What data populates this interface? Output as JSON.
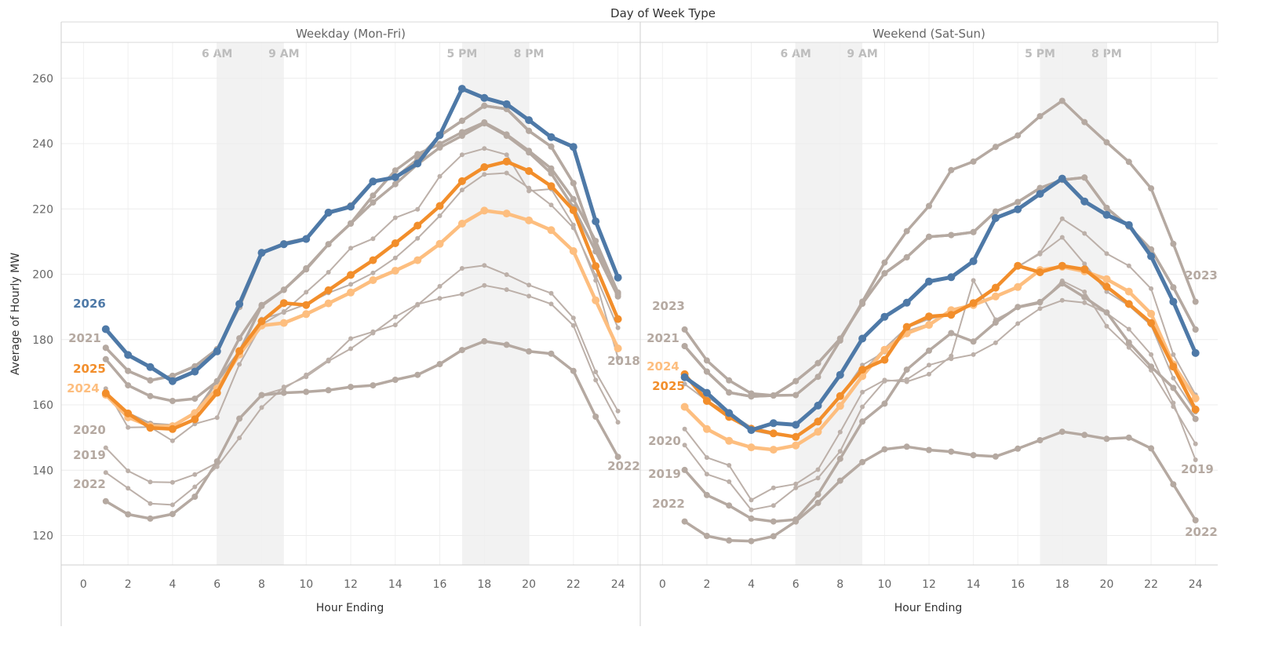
{
  "chart_data": {
    "type": "line",
    "title": "Day of Week Type",
    "ylabel": "Average of Hourly MW",
    "xlabel": "Hour Ending",
    "xlim": [
      -1,
      25
    ],
    "ylim": [
      111,
      271
    ],
    "x_ticks": [
      0,
      2,
      4,
      6,
      8,
      10,
      12,
      14,
      16,
      18,
      20,
      22,
      24
    ],
    "y_ticks": [
      120,
      140,
      160,
      180,
      200,
      220,
      240,
      260
    ],
    "grid": true,
    "legend": "none",
    "shaded_bands": [
      {
        "from": 6,
        "to": 9,
        "start_label": "6 AM",
        "end_label": "9 AM"
      },
      {
        "from": 17,
        "to": 20,
        "start_label": "5 PM",
        "end_label": "8 PM"
      }
    ],
    "x": [
      1,
      2,
      3,
      4,
      5,
      6,
      7,
      8,
      9,
      10,
      11,
      12,
      13,
      14,
      15,
      16,
      17,
      18,
      19,
      20,
      21,
      22,
      23,
      24
    ],
    "panels": [
      {
        "name": "Weekday (Mon-Fri)",
        "series": [
          {
            "name": "",
            "color": "#b5a9a1",
            "width": 3.5,
            "marker": 4,
            "values": [
              177.5,
              170.4,
              167.5,
              168.9,
              171.8,
              177.1,
              190.0,
              206.3,
              209.5,
              211.0,
              218.6,
              221.1,
              228.6,
              229.5,
              235.2,
              242.4,
              247.0,
              251.6,
              250.6,
              243.9,
              239.1,
              227.9,
              208.6,
              193.9
            ]
          },
          {
            "name": "",
            "color": "#b5a9a1",
            "width": 3.5,
            "marker": 4,
            "values": [
              163.7,
              157.4,
              154.2,
              153.7,
              157.4,
              167.3,
              180.4,
              190.6,
              195.2,
              201.8,
              209.2,
              215.6,
              224.1,
              231.8,
              236.8,
              239.9,
              243.5,
              246.5,
              242.8,
              237.8,
              232.4,
              223.0,
              210.2,
              194.4
            ]
          },
          {
            "name": "",
            "color": "#b5a9a1",
            "width": 3.5,
            "marker": 4,
            "values": [
              174.0,
              166.0,
              162.7,
              161.2,
              161.9,
              167.2,
              176.3,
              190.3,
              195.3,
              201.5,
              209.2,
              215.5,
              222.0,
              227.6,
              233.7,
              238.8,
              242.4,
              246.2,
              242.4,
              237.3,
              230.9,
              220.5,
              207.0,
              193.2
            ]
          },
          {
            "name": "2018",
            "color": "#bcb0a9",
            "width": 2,
            "marker": 3,
            "values": [
              165.0,
              153.1,
              153.2,
              149.0,
              154.2,
              156.1,
              172.4,
              184.6,
              188.6,
              194.5,
              200.6,
              208.0,
              210.9,
              217.3,
              219.9,
              230.0,
              236.6,
              238.5,
              236.6,
              225.5,
              226.1,
              215.1,
              198.1,
              174.4
            ]
          },
          {
            "name": "",
            "color": "#bcb0a9",
            "width": 2,
            "marker": 3,
            "values": [
              163.0,
              157.5,
              154.0,
              152.8,
              155.3,
              163.4,
              176.0,
              186.3,
              188.3,
              190.8,
              194.3,
              196.9,
              200.4,
              205.0,
              211.0,
              217.9,
              225.8,
              230.6,
              231.0,
              226.4,
              221.2,
              214.2,
              199.6,
              183.6
            ]
          },
          {
            "name": "2020",
            "color": "#bcb0a9",
            "width": 2,
            "marker": 3,
            "values": [
              146.9,
              139.8,
              136.4,
              136.3,
              138.7,
              142.3,
              156.0,
              163.0,
              165.0,
              169.2,
              173.8,
              180.3,
              182.4,
              184.5,
              190.6,
              196.3,
              201.8,
              202.7,
              199.9,
              196.7,
              194.2,
              186.6,
              170.1,
              158.1
            ]
          },
          {
            "name": "2019",
            "color": "#bcb0a9",
            "width": 2,
            "marker": 3,
            "values": [
              139.3,
              134.5,
              129.8,
              129.4,
              134.9,
              141.1,
              149.9,
              159.2,
              165.5,
              168.6,
              173.4,
              177.2,
              182.0,
              187.0,
              190.8,
              192.6,
              193.9,
              196.6,
              195.3,
              193.3,
              190.9,
              184.3,
              167.6,
              154.7
            ]
          },
          {
            "name": "2022",
            "color": "#b5a9a1",
            "width": 3.5,
            "marker": 4,
            "values": [
              130.5,
              126.5,
              125.2,
              126.6,
              131.9,
              142.7,
              155.8,
              163.0,
              163.7,
              164.0,
              164.5,
              165.5,
              166.0,
              167.7,
              169.2,
              172.5,
              176.8,
              179.5,
              178.4,
              176.4,
              175.7,
              170.4,
              156.4,
              144.1
            ]
          },
          {
            "name": "2021",
            "color": "#b5a9a1",
            "width": 3.5,
            "marker": 4,
            "values": [
              177.5,
              170.4,
              167.5,
              168.9,
              171.8,
              177.1,
              190.0,
              206.3,
              209.5,
              211.0,
              218.6,
              221.1,
              228.6,
              229.5,
              235.2,
              242.4,
              247.0,
              251.6,
              250.6,
              243.9,
              239.1,
              227.9,
              208.6,
              193.9
            ]
          },
          {
            "name": "2024",
            "color": "#fdbe7f",
            "width": 4.5,
            "marker": 5,
            "values": [
              163.1,
              156.2,
              153.5,
              153.5,
              157.5,
              165.0,
              175.4,
              184.3,
              185.1,
              187.8,
              191.1,
              194.4,
              198.2,
              201.1,
              204.3,
              209.3,
              215.5,
              219.5,
              218.6,
              216.5,
              213.5,
              207.1,
              192.0,
              177.3
            ]
          },
          {
            "name": "2025",
            "color": "#f28e2b",
            "width": 4.5,
            "marker": 5,
            "values": [
              163.6,
              157.4,
              153.0,
              152.6,
              155.6,
              163.7,
              176.5,
              185.6,
              191.2,
              190.6,
              195.1,
              199.8,
              204.3,
              209.5,
              214.9,
              220.9,
              228.5,
              232.8,
              234.5,
              231.6,
              227.0,
              219.6,
              202.5,
              186.3
            ]
          },
          {
            "name": "2026",
            "color": "#4e79a7",
            "width": 5,
            "marker": 5,
            "values": [
              183.2,
              175.3,
              171.6,
              167.3,
              170.2,
              176.4,
              190.9,
              206.6,
              209.2,
              210.8,
              218.9,
              220.7,
              228.4,
              229.7,
              233.9,
              242.6,
              256.8,
              254.0,
              252.1,
              247.2,
              242.0,
              239.0,
              216.2,
              199.0
            ]
          }
        ]
      },
      {
        "name": "Weekend (Sat-Sun)",
        "series": [
          {
            "name": "2023",
            "color": "#b5a9a1",
            "width": 3.5,
            "marker": 4,
            "values": [
              183.1,
              173.6,
              167.5,
              163.5,
              162.9,
              163.0,
              168.6,
              179.7,
              191.6,
              203.6,
              213.2,
              220.9,
              231.9,
              234.5,
              239.0,
              242.5,
              248.4,
              253.1,
              246.6,
              240.4,
              234.4,
              226.3,
              209.3,
              191.6
            ]
          },
          {
            "name": "",
            "color": "#b5a9a1",
            "width": 3.5,
            "marker": 4,
            "values": [
              178.0,
              170.2,
              163.8,
              162.6,
              162.9,
              167.3,
              172.8,
              180.3,
              191.0,
              200.3,
              205.2,
              211.5,
              212.0,
              212.9,
              219.2,
              222.1,
              226.4,
              228.9,
              229.6,
              220.3,
              214.6,
              207.6,
              196.0,
              183.1
            ]
          },
          {
            "name": "",
            "color": "#bcb0a9",
            "width": 2,
            "marker": 3,
            "values": [
              168.8,
              162.5,
              158.0,
              152.2,
              150.9,
              150.1,
              154.6,
              162.6,
              170.1,
              177.3,
              183.7,
              186.3,
              188.0,
              191.4,
              195.4,
              202.4,
              206.2,
              211.3,
              203.2,
              194.7,
              190.4,
              184.4,
              168.2,
              157.8
            ]
          },
          {
            "name": "",
            "color": "#bcb0a9",
            "width": 2,
            "marker": 3,
            "values": [
              166.4,
              161.3,
              157.4,
              153.2,
              151.6,
              150.1,
              155.4,
              162.4,
              172.2,
              176.2,
              182.6,
              184.8,
              188.4,
              190.5,
              195.9,
              202.2,
              206.6,
              217.0,
              212.5,
              206.3,
              202.6,
              195.6,
              175.4,
              163.1
            ]
          },
          {
            "name": "2020",
            "color": "#bcb0a9",
            "width": 2,
            "marker": 3,
            "values": [
              152.6,
              143.9,
              141.5,
              130.9,
              134.6,
              135.8,
              140.2,
              151.7,
              163.9,
              167.6,
              167.1,
              169.4,
              175.0,
              198.1,
              186.1,
              189.7,
              191.1,
              198.0,
              194.6,
              184.1,
              177.6,
              170.6,
              159.5,
              148.1
            ]
          },
          {
            "name": "2019",
            "color": "#bcb0a9",
            "width": 2,
            "marker": 3,
            "values": [
              147.7,
              138.8,
              136.5,
              127.9,
              129.2,
              134.6,
              137.6,
              145.8,
              159.4,
              167.3,
              167.8,
              172.2,
              174.1,
              175.4,
              179.0,
              184.9,
              189.5,
              192.0,
              191.3,
              188.1,
              183.2,
              175.4,
              160.6,
              143.2
            ]
          },
          {
            "name": "",
            "color": "#b5a9a1",
            "width": 3.5,
            "marker": 4,
            "values": [
              140.1,
              132.4,
              129.2,
              125.2,
              124.3,
              124.9,
              132.6,
              143.5,
              154.9,
              160.4,
              170.8,
              176.6,
              182.0,
              179.4,
              185.2,
              190.0,
              191.5,
              197.2,
              193.0,
              188.3,
              179.1,
              171.7,
              165.2,
              155.7
            ]
          },
          {
            "name": "2022",
            "color": "#b5a9a1",
            "width": 3.5,
            "marker": 4,
            "values": [
              124.3,
              119.9,
              118.5,
              118.3,
              119.8,
              124.3,
              130.0,
              136.8,
              142.5,
              146.4,
              147.2,
              146.2,
              145.7,
              144.6,
              144.2,
              146.6,
              149.2,
              151.8,
              150.8,
              149.6,
              150.0,
              146.7,
              135.7,
              124.7
            ]
          },
          {
            "name": "2021",
            "color": "#b5a9a1",
            "width": 3.5,
            "marker": 4,
            "values": [
              178.0,
              170.2,
              163.8,
              162.6,
              162.9,
              167.3,
              172.8,
              180.3,
              191.0,
              200.3,
              205.2,
              211.5,
              212.0,
              212.9,
              219.2,
              222.1,
              226.4,
              228.9,
              229.6,
              220.3,
              214.6,
              207.6,
              196.0,
              183.1
            ]
          },
          {
            "name": "2024",
            "color": "#fdbe7f",
            "width": 4.5,
            "marker": 5,
            "values": [
              159.4,
              152.6,
              149.0,
              147.0,
              146.3,
              147.6,
              151.8,
              159.7,
              168.8,
              176.9,
              181.9,
              184.5,
              189.0,
              190.6,
              193.2,
              196.1,
              201.3,
              202.3,
              200.9,
              198.5,
              194.7,
              187.9,
              172.4,
              162.0
            ]
          },
          {
            "name": "2025",
            "color": "#f28e2b",
            "width": 4.5,
            "marker": 5,
            "values": [
              169.4,
              161.2,
              156.3,
              152.7,
              151.3,
              150.2,
              154.9,
              162.7,
              170.8,
              173.8,
              183.9,
              187.1,
              187.6,
              191.2,
              195.9,
              202.6,
              200.6,
              202.6,
              201.5,
              196.2,
              190.9,
              185.1,
              171.7,
              158.6
            ]
          },
          {
            "name": "2026",
            "color": "#4e79a7",
            "width": 5,
            "marker": 5,
            "values": [
              168.5,
              163.7,
              157.5,
              152.3,
              154.4,
              153.9,
              159.8,
              169.2,
              180.3,
              187.0,
              191.3,
              197.8,
              199.1,
              204.0,
              217.2,
              219.9,
              224.6,
              229.3,
              222.3,
              218.2,
              215.1,
              205.5,
              191.6,
              175.9
            ]
          }
        ]
      }
    ]
  }
}
